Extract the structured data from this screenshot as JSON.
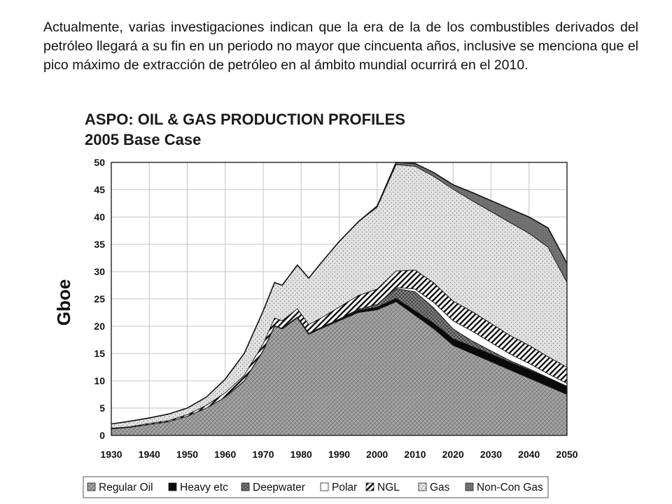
{
  "paragraph": "Actualmente, varias investigaciones indican que la era de la de los combustibles derivados del petróleo llegará a su fin en un periodo no mayor que cincuenta años, inclusive se menciona que el pico máximo de extracción de petróleo en al ámbito mundial ocurrirá en el 2010.",
  "chart_data": {
    "type": "area",
    "stacked": true,
    "title": "ASPO: OIL & GAS PRODUCTION PROFILES",
    "subtitle": "2005 Base Case",
    "xlabel": "",
    "ylabel": "Gboe",
    "xlim": [
      1930,
      2050
    ],
    "ylim": [
      0,
      50
    ],
    "xticks": [
      "1930",
      "1940",
      "1950",
      "1960",
      "1970",
      "1980",
      "1990",
      "2000",
      "2010",
      "2020",
      "2030",
      "2040",
      "2050"
    ],
    "yticks": [
      "0",
      "5",
      "10",
      "15",
      "20",
      "25",
      "30",
      "35",
      "40",
      "45",
      "50"
    ],
    "grid": true,
    "legend_position": "bottom",
    "x": [
      1930,
      1935,
      1940,
      1945,
      1950,
      1955,
      1960,
      1965,
      1970,
      1973,
      1975,
      1979,
      1982,
      1985,
      1990,
      1995,
      2000,
      2005,
      2010,
      2015,
      2020,
      2025,
      2030,
      2035,
      2040,
      2045,
      2050
    ],
    "series": [
      {
        "name": "Regular Oil",
        "color": "#9a9a9a",
        "values": [
          1.2,
          1.5,
          2.0,
          2.5,
          3.5,
          5.0,
          7.0,
          10.0,
          15.5,
          20.0,
          19.5,
          21.5,
          18.5,
          19.5,
          21.0,
          22.5,
          23.0,
          24.5,
          22.0,
          19.5,
          16.5,
          15.0,
          13.5,
          12.0,
          10.5,
          9.0,
          7.5
        ]
      },
      {
        "name": "Heavy etc",
        "color": "#0a0a0a",
        "values": [
          0,
          0,
          0,
          0,
          0,
          0,
          0,
          0,
          0.1,
          0.1,
          0.1,
          0.2,
          0.2,
          0.2,
          0.3,
          0.4,
          0.5,
          0.6,
          0.8,
          1.0,
          1.2,
          1.3,
          1.4,
          1.4,
          1.5,
          1.5,
          1.5
        ]
      },
      {
        "name": "Deepwater",
        "color": "#5c5c5c",
        "values": [
          0,
          0,
          0,
          0,
          0,
          0,
          0,
          0,
          0,
          0,
          0,
          0,
          0,
          0,
          0,
          0.2,
          0.5,
          1.8,
          3.5,
          2.8,
          1.8,
          1.0,
          0.6,
          0.3,
          0.2,
          0.1,
          0
        ]
      },
      {
        "name": "Polar",
        "color": "#ffffff",
        "values": [
          0,
          0,
          0,
          0,
          0,
          0,
          0,
          0,
          0,
          0,
          0,
          0,
          0,
          0,
          0,
          0,
          0,
          0.2,
          0.5,
          1.0,
          1.5,
          1.8,
          1.5,
          1.2,
          1.0,
          0.7,
          0.5
        ]
      },
      {
        "name": "NGL",
        "color": "#ffffff",
        "values": [
          0.1,
          0.1,
          0.2,
          0.2,
          0.3,
          0.5,
          0.8,
          1.0,
          1.2,
          1.4,
          1.4,
          1.5,
          1.6,
          1.7,
          2.2,
          2.5,
          2.8,
          3.0,
          3.5,
          3.6,
          3.6,
          3.6,
          3.5,
          3.4,
          3.3,
          3.1,
          3.0
        ]
      },
      {
        "name": "Gas",
        "color": "#dedede",
        "values": [
          0.8,
          1.0,
          1.0,
          1.2,
          1.2,
          1.5,
          2.5,
          4.0,
          6.0,
          6.5,
          6.5,
          8.0,
          8.5,
          10.0,
          12.0,
          13.5,
          15.0,
          19.5,
          19.0,
          19.5,
          20.5,
          20.3,
          20.5,
          20.7,
          20.5,
          20.1,
          15.5
        ]
      },
      {
        "name": "Non-Con Gas",
        "color": "#6e6e6e",
        "values": [
          0,
          0,
          0,
          0,
          0,
          0,
          0,
          0,
          0,
          0,
          0,
          0,
          0,
          0,
          0,
          0,
          0.2,
          0.4,
          0.5,
          0.7,
          0.8,
          1.5,
          2.0,
          2.5,
          3.0,
          3.5,
          3.5
        ]
      }
    ]
  }
}
